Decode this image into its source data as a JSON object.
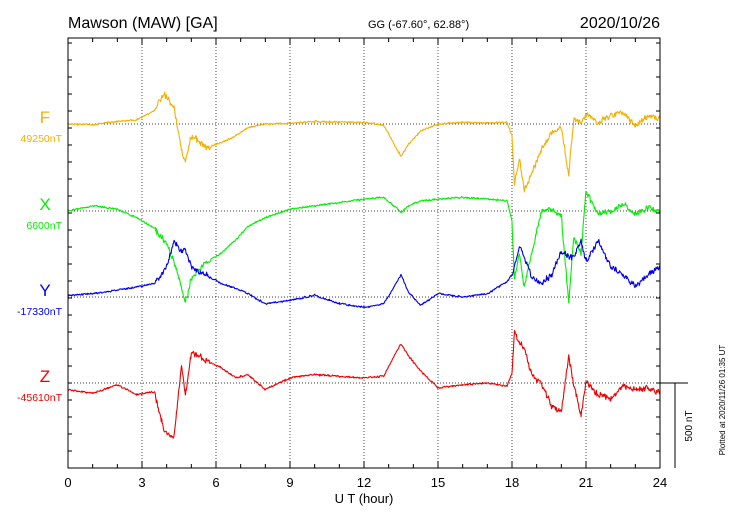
{
  "chart_data": {
    "type": "line",
    "title": "Mawson (MAW)  [GA]",
    "coords": "GG (-67.60°,  62.88°)",
    "date": "2020/10/26",
    "xlabel": "U T (hour)",
    "xlim": [
      0,
      24
    ],
    "xticks": [
      "0",
      "3",
      "6",
      "9",
      "12",
      "15",
      "18",
      "21",
      "24"
    ],
    "scale_label": "500 nT",
    "scale_nT": 500,
    "plotted_note": "Plotted at 2020/11/26 01:35 UT",
    "grid": true,
    "series": [
      {
        "name": "F",
        "baseline_label": "49250nT",
        "color": "#f5b000",
        "x": [
          0,
          1,
          2,
          2.8,
          3.5,
          3.9,
          4.3,
          4.6,
          4.75,
          5.0,
          5.3,
          5.6,
          6.2,
          6.8,
          7.3,
          8,
          9,
          10,
          11,
          12,
          12.8,
          13.3,
          13.5,
          13.8,
          14.3,
          15,
          16,
          17,
          17.8,
          18.0,
          18.1,
          18.3,
          18.5,
          18.8,
          19.2,
          19.6,
          20.0,
          20.3,
          20.5,
          20.8,
          21.0,
          21.5,
          22,
          22.5,
          23,
          23.5,
          24
        ],
        "y": [
          49250,
          49245,
          49265,
          49275,
          49330,
          49430,
          49350,
          49100,
          49030,
          49180,
          49150,
          49110,
          49140,
          49180,
          49230,
          49250,
          49255,
          49265,
          49260,
          49260,
          49245,
          49110,
          49060,
          49130,
          49210,
          49250,
          49260,
          49255,
          49260,
          49180,
          48900,
          49050,
          48860,
          48960,
          49100,
          49200,
          49230,
          48950,
          49280,
          49260,
          49310,
          49260,
          49300,
          49320,
          49240,
          49300,
          49280
        ]
      },
      {
        "name": "X",
        "baseline_label": "6600nT",
        "color": "#00ee00",
        "x": [
          0,
          1,
          2,
          2.8,
          3.5,
          4.0,
          4.3,
          4.6,
          4.75,
          5.0,
          5.3,
          5.6,
          6.2,
          6.8,
          7.3,
          8,
          9,
          10,
          11,
          12,
          12.8,
          13.3,
          13.5,
          13.8,
          14.3,
          15,
          16,
          17,
          17.8,
          18.0,
          18.1,
          18.3,
          18.5,
          18.8,
          19.2,
          19.6,
          20.0,
          20.3,
          20.5,
          20.8,
          21.0,
          21.5,
          22,
          22.5,
          23,
          23.5,
          24
        ],
        "y": [
          6600,
          6630,
          6610,
          6560,
          6500,
          6400,
          6300,
          6150,
          6050,
          6200,
          6250,
          6300,
          6350,
          6430,
          6510,
          6560,
          6610,
          6630,
          6650,
          6670,
          6680,
          6620,
          6590,
          6630,
          6660,
          6670,
          6680,
          6670,
          6660,
          6540,
          6200,
          6350,
          6150,
          6350,
          6600,
          6610,
          6570,
          6060,
          6450,
          6350,
          6720,
          6580,
          6600,
          6640,
          6580,
          6620,
          6600
        ]
      },
      {
        "name": "Y",
        "baseline_label": "-17330nT",
        "color": "#0000ee",
        "x": [
          0,
          1,
          2,
          2.8,
          3.5,
          4.0,
          4.3,
          4.6,
          4.75,
          5.0,
          5.3,
          5.6,
          6.2,
          6.8,
          7.3,
          8,
          9,
          10,
          11,
          12,
          12.8,
          13.3,
          13.5,
          13.8,
          14.3,
          15,
          16,
          17,
          17.8,
          18.0,
          18.1,
          18.3,
          18.5,
          18.8,
          19.2,
          19.6,
          20.0,
          20.3,
          20.5,
          20.8,
          21.0,
          21.5,
          22,
          22.5,
          23,
          23.5,
          24
        ],
        "y": [
          -17320,
          -17310,
          -17290,
          -17270,
          -17250,
          -17150,
          -17000,
          -17060,
          -17050,
          -17150,
          -17180,
          -17200,
          -17250,
          -17280,
          -17310,
          -17370,
          -17350,
          -17320,
          -17370,
          -17390,
          -17370,
          -17250,
          -17200,
          -17300,
          -17380,
          -17310,
          -17330,
          -17310,
          -17240,
          -17200,
          -17150,
          -17030,
          -17100,
          -17210,
          -17250,
          -17200,
          -17060,
          -17090,
          -17100,
          -17000,
          -17120,
          -17000,
          -17150,
          -17200,
          -17270,
          -17200,
          -17150
        ]
      },
      {
        "name": "Z",
        "baseline_label": "-45610nT",
        "color": "#ee0000",
        "x": [
          0,
          1,
          2,
          2.8,
          3.5,
          3.9,
          4.3,
          4.6,
          4.75,
          5.0,
          5.3,
          5.6,
          6.2,
          6.8,
          7.3,
          8,
          9,
          10,
          11,
          12,
          12.8,
          13.3,
          13.5,
          13.8,
          14.3,
          15,
          16,
          17,
          17.8,
          18.0,
          18.1,
          18.3,
          18.5,
          18.8,
          19.2,
          19.6,
          20.0,
          20.3,
          20.5,
          20.8,
          21.0,
          21.5,
          22,
          22.5,
          23,
          23.5,
          24
        ],
        "y": [
          -45650,
          -45670,
          -45620,
          -45680,
          -45660,
          -45900,
          -45930,
          -45500,
          -45690,
          -45430,
          -45450,
          -45480,
          -45520,
          -45580,
          -45560,
          -45650,
          -45580,
          -45560,
          -45570,
          -45580,
          -45570,
          -45430,
          -45380,
          -45450,
          -45540,
          -45640,
          -45620,
          -45610,
          -45630,
          -45550,
          -45300,
          -45380,
          -45400,
          -45560,
          -45620,
          -45740,
          -45780,
          -45450,
          -45620,
          -45800,
          -45600,
          -45680,
          -45700,
          -45630,
          -45650,
          -45640,
          -45670
        ]
      }
    ]
  }
}
